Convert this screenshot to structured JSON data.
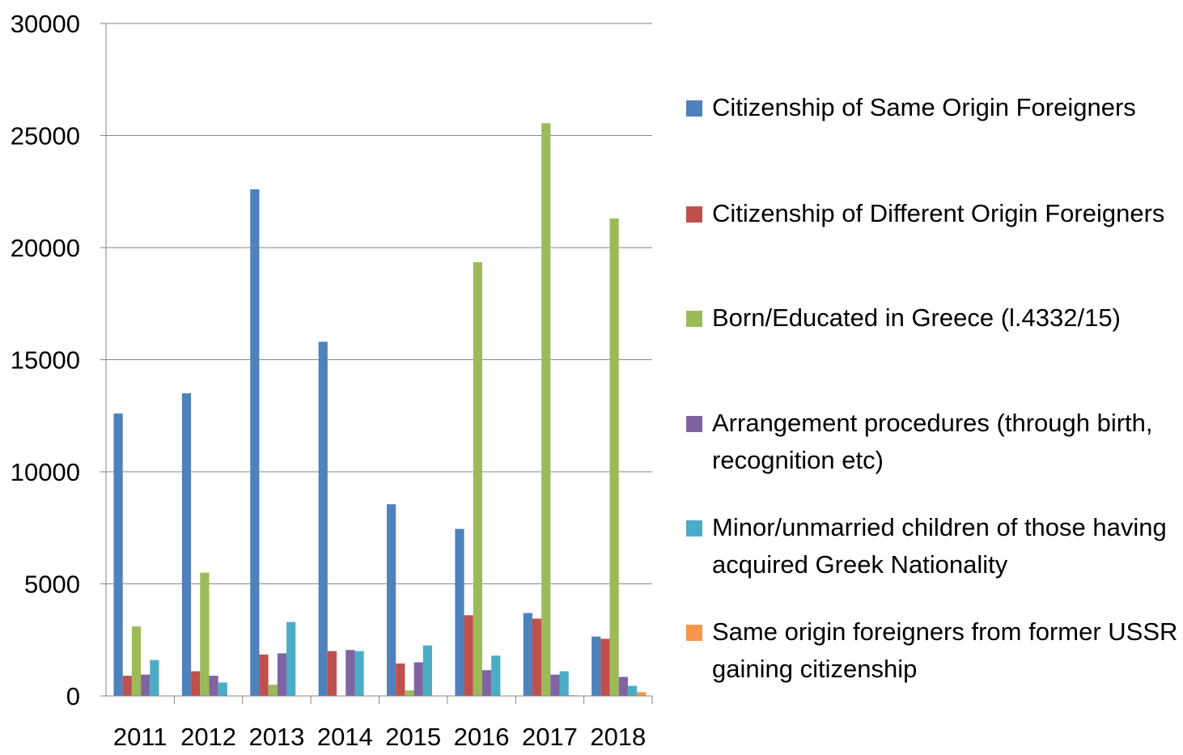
{
  "chart_data": {
    "type": "bar",
    "categories": [
      "2011",
      "2012",
      "2013",
      "2014",
      "2015",
      "2016",
      "2017",
      "2018"
    ],
    "ylim": [
      0,
      30000
    ],
    "yticks": [
      0,
      5000,
      10000,
      15000,
      20000,
      25000,
      30000
    ],
    "ytick_labels": [
      "0",
      "5000",
      "10000",
      "15000",
      "20000",
      "25000",
      "30000"
    ],
    "grid": true,
    "legend_placement": "right",
    "series": [
      {
        "name": "Citizenship of Same Origin Foreigners",
        "color": "#4F81BD",
        "values": [
          12600,
          13500,
          22600,
          15800,
          8550,
          7450,
          3700,
          2650
        ]
      },
      {
        "name": "Citizenship of Different Origin Foreigners",
        "color": "#C0504D",
        "values": [
          900,
          1100,
          1850,
          2000,
          1450,
          3600,
          3450,
          2550
        ]
      },
      {
        "name": "Born/Educated in Greece (l.4332/15)",
        "color": "#9BBB59",
        "values": [
          3100,
          5500,
          500,
          0,
          250,
          19350,
          25550,
          21300
        ]
      },
      {
        "name": "Arrangement procedures (through birth, recognition etc)",
        "color": "#8064A2",
        "values": [
          950,
          900,
          1900,
          2050,
          1500,
          1150,
          950,
          850
        ]
      },
      {
        "name": "Minor/unmarried children of those having acquired Greek Nationality",
        "color": "#4BACC6",
        "values": [
          1600,
          600,
          3300,
          2000,
          2250,
          1800,
          1100,
          450
        ]
      },
      {
        "name": "Same origin foreigners from former USSR gaining citizenship",
        "color": "#F79646",
        "values": [
          0,
          0,
          0,
          0,
          0,
          0,
          30,
          170
        ]
      }
    ]
  }
}
